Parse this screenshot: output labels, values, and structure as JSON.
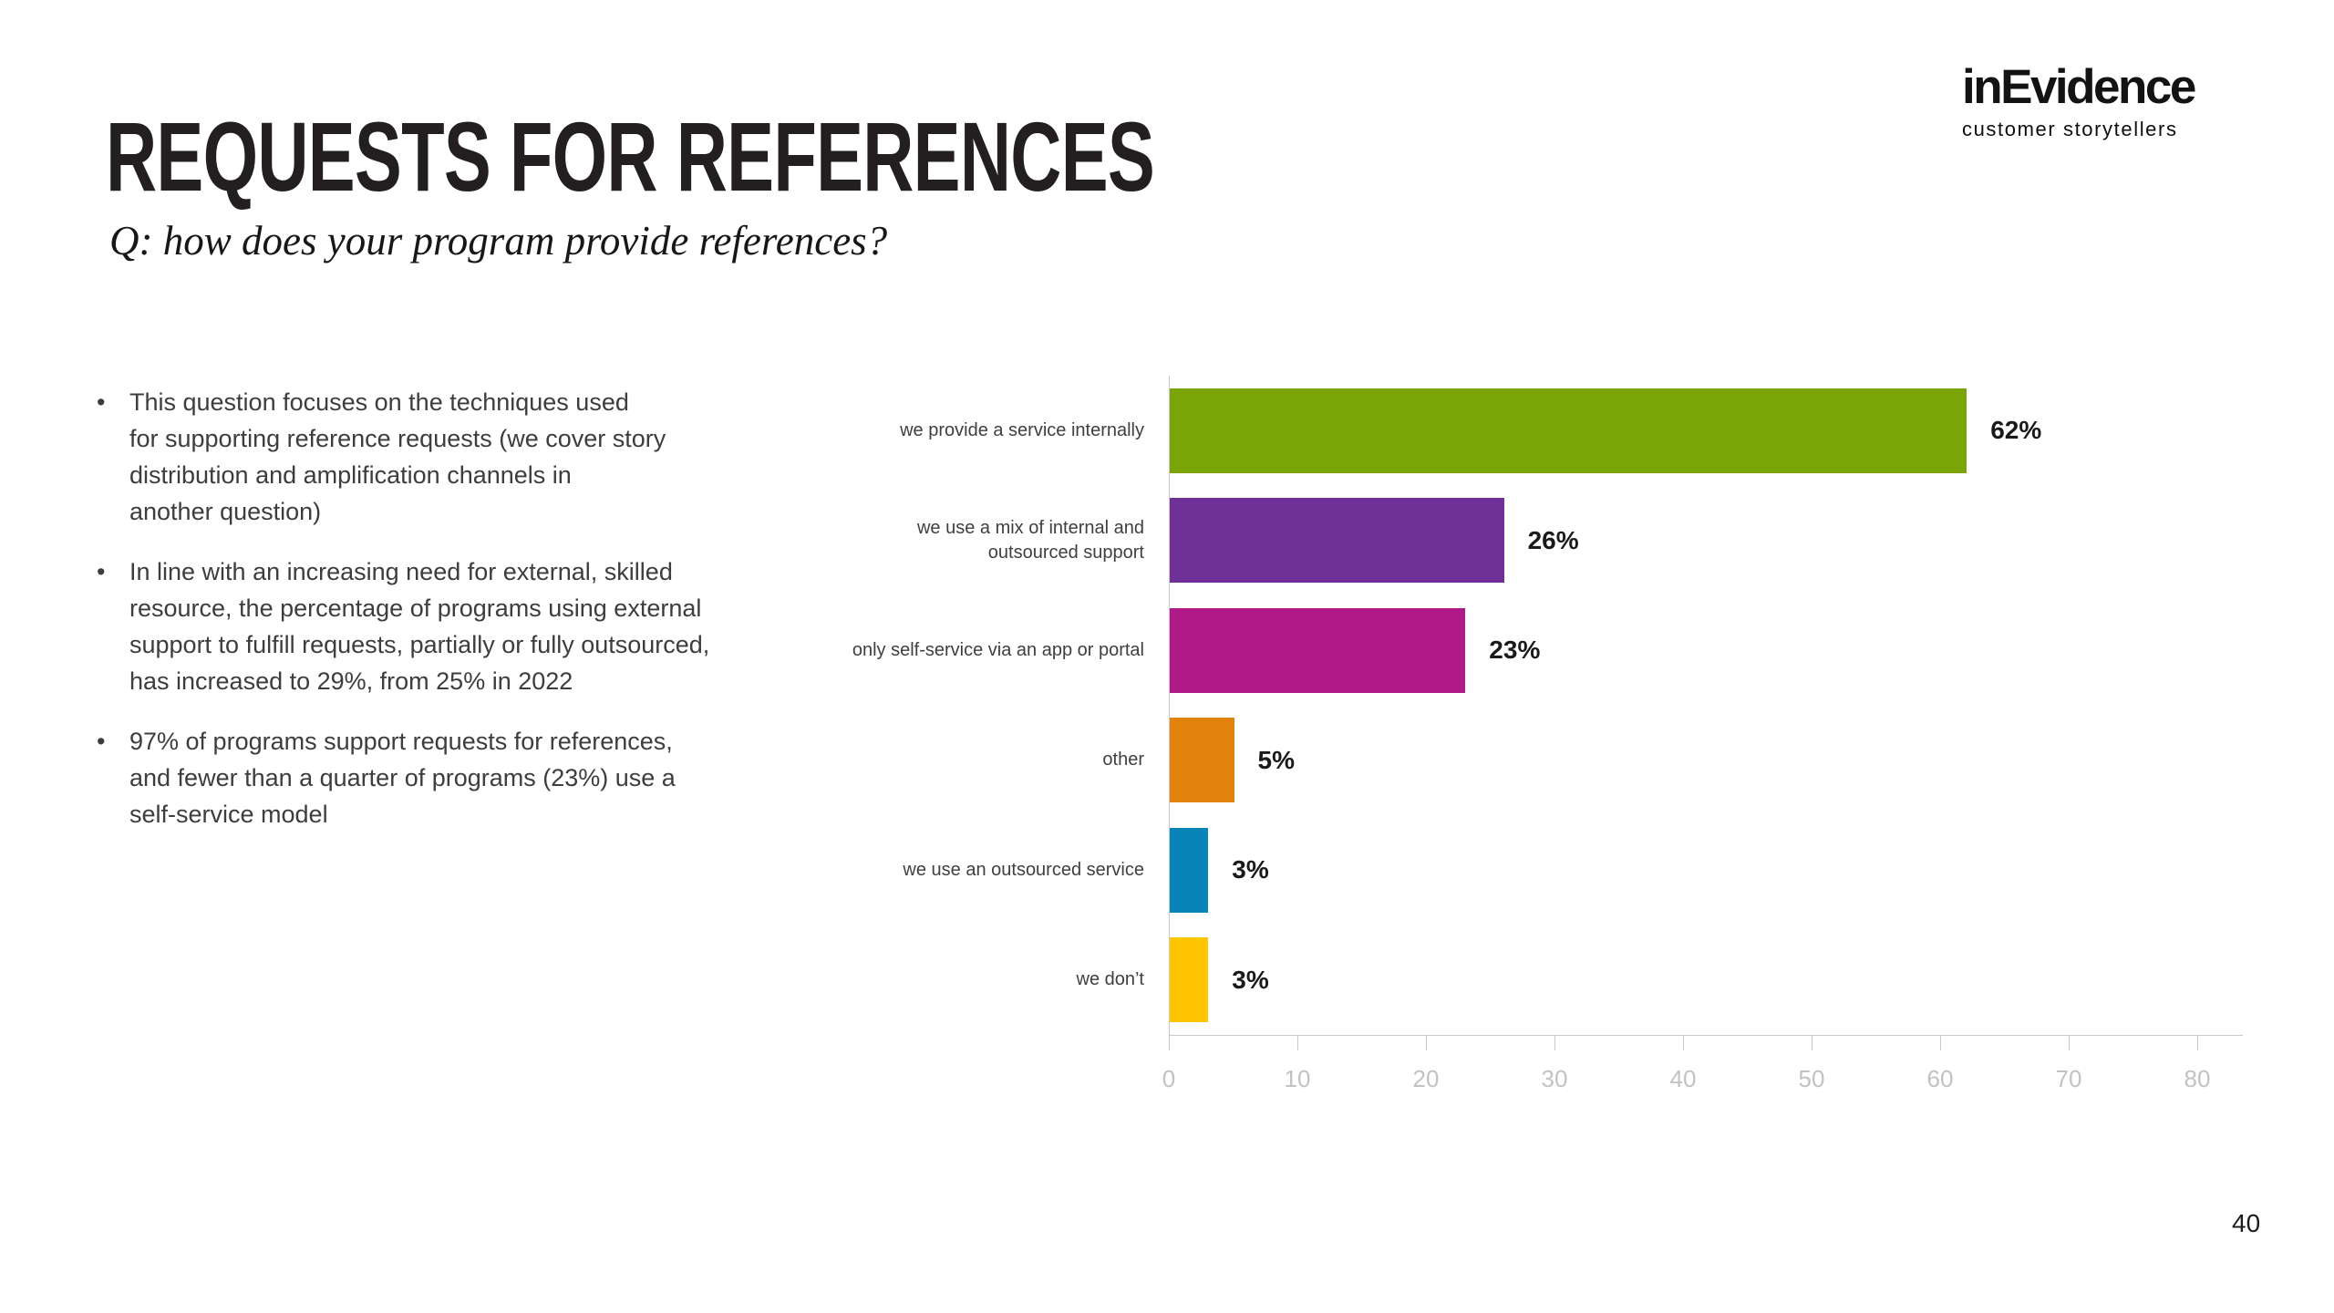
{
  "header": {
    "title": "REQUESTS FOR REFERENCES",
    "question": "Q: how does your program provide references?"
  },
  "logo": {
    "name": "inEvidence",
    "tagline": "customer storytellers"
  },
  "bullets": {
    "marker": "•",
    "items": [
      [
        "This question focuses on the techniques used",
        "for supporting reference requests (we cover story",
        "distribution and amplification channels in",
        "another question)"
      ],
      [
        "In line with an increasing need for external, skilled",
        "resource, the percentage of programs using external",
        "support to fulfill requests, partially or fully outsourced,",
        "has increased to 29%, from 25% in 2022"
      ],
      [
        "97% of programs support requests for references,",
        "and fewer than a quarter of programs (23%) use a",
        "self-service model"
      ]
    ]
  },
  "chart_data": {
    "type": "bar",
    "orientation": "horizontal",
    "title": "",
    "xlabel": "",
    "ylabel": "",
    "categories": [
      "we provide a service internally",
      "we use a mix of internal and outsourced support",
      "only self-service via an app or portal",
      "other",
      "we use an outsourced service",
      "we don’t"
    ],
    "values": [
      62,
      26,
      23,
      5,
      3,
      3
    ],
    "value_labels": [
      "62%",
      "26%",
      "23%",
      "5%",
      "3%",
      "3%"
    ],
    "bar_colors": [
      "#7BA506",
      "#6F3198",
      "#AF1A88",
      "#E2830E",
      "#0884B8",
      "#FFC502"
    ],
    "xlim": [
      0,
      80
    ],
    "x_ticks": [
      0,
      10,
      20,
      30,
      40,
      50,
      60,
      70,
      80
    ],
    "grid": false,
    "legend": false,
    "axis_color": "#C9C9C9",
    "tick_label_color": "#C2C2C2"
  },
  "footer": {
    "page_number": "40"
  }
}
